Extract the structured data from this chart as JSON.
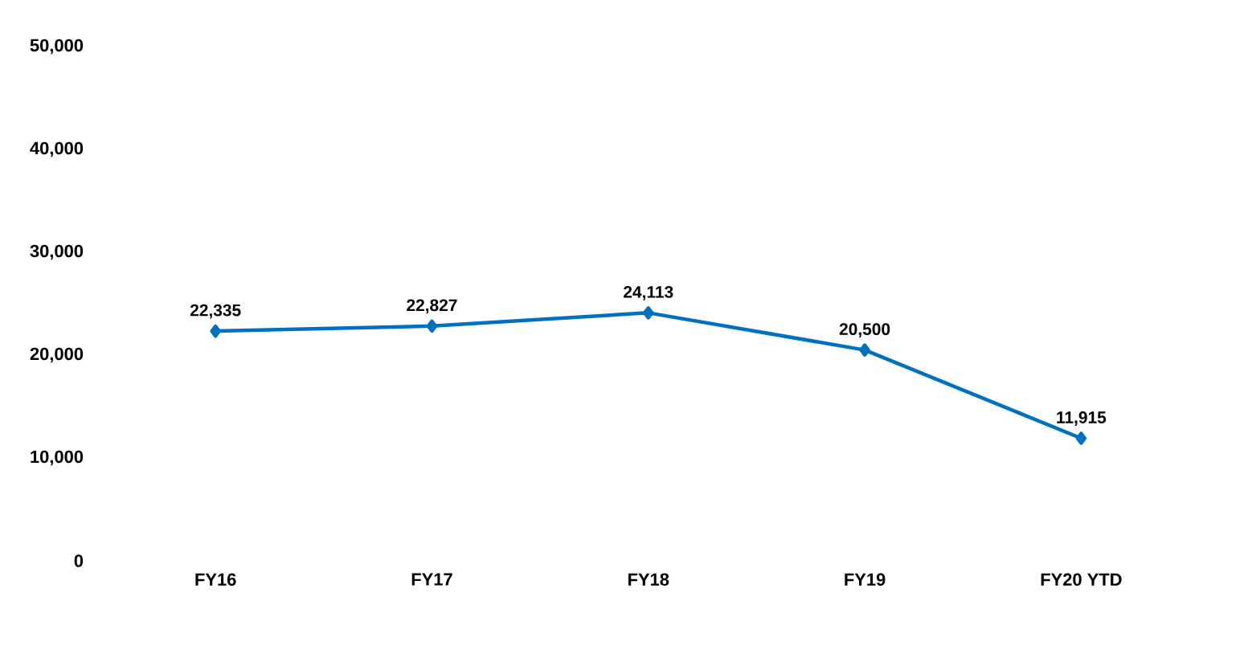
{
  "chart_data": {
    "type": "line",
    "categories": [
      "FY16",
      "FY17",
      "FY18",
      "FY19",
      "FY20 YTD"
    ],
    "values": [
      22335,
      22827,
      24113,
      20500,
      11915
    ],
    "value_labels": [
      "22,335",
      "22,827",
      "24,113",
      "20,500",
      "11,915"
    ],
    "color": "#0070c0",
    "marker": "diamond",
    "line_style": "solid",
    "grid": false,
    "ylim": [
      0,
      50000
    ],
    "yticks": [
      0,
      {
        "value": 10000,
        "label": "10,000"
      },
      {
        "value": 20000,
        "label": "20,000"
      },
      {
        "value": 30000,
        "label": "30,000"
      },
      {
        "value": 40000,
        "label": "40,000"
      },
      {
        "value": 50000,
        "label": "50,000"
      }
    ]
  }
}
